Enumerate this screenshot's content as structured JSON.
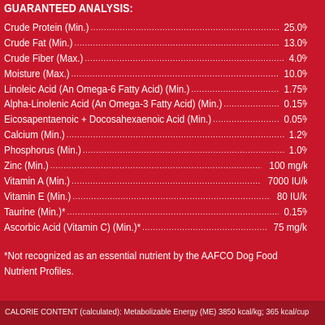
{
  "heading": "GUARANTEED ANALYSIS:",
  "rows": [
    {
      "label": "Crude Protein (Min.)",
      "value": "25.0%"
    },
    {
      "label": "Crude Fat (Min.)",
      "value": "13.0%"
    },
    {
      "label": "Crude Fiber (Max.)",
      "value": "4.0%"
    },
    {
      "label": "Moisture (Max.)",
      "value": "10.0%"
    },
    {
      "label": "Linoleic Acid (An Omega-6 Fatty Acid) (Min.)",
      "value": "1.75%"
    },
    {
      "label": "Alpha-Linolenic Acid (An Omega-3 Fatty Acid) (Min.)",
      "value": "0.15%"
    },
    {
      "label": "Eicosapentaenoic + Docosahexaenoic Acid (Min.)",
      "value": "0.05%"
    },
    {
      "label": "Calcium (Min.)",
      "value": "1.2%"
    },
    {
      "label": "Phosphorus (Min.)",
      "value": "1.0%"
    },
    {
      "label": "Zinc (Min.)",
      "value": "100 mg/kg"
    },
    {
      "label": "Vitamin A (Min.)",
      "value": "7000 IU/kg"
    },
    {
      "label": "Vitamin E (Min.)",
      "value": "80 IU/kg"
    },
    {
      "label": "Taurine (Min.)*",
      "value": "0.15%"
    },
    {
      "label": "Ascorbic Acid (Vitamin C) (Min.)*",
      "value": "75 mg/kg"
    }
  ],
  "footnote": "*Not recognized as an essential nutrient by the AAFCO Dog Food Nutrient Profiles.",
  "calorie": {
    "label": "CALORIE CONTENT (calculated):",
    "text": "Metabolizable Energy (ME) 3850 kcal/kg; 365 kcal/cup"
  },
  "colors": {
    "background": "#c8172b",
    "band": "#9b1422",
    "text": "#ffffff"
  }
}
